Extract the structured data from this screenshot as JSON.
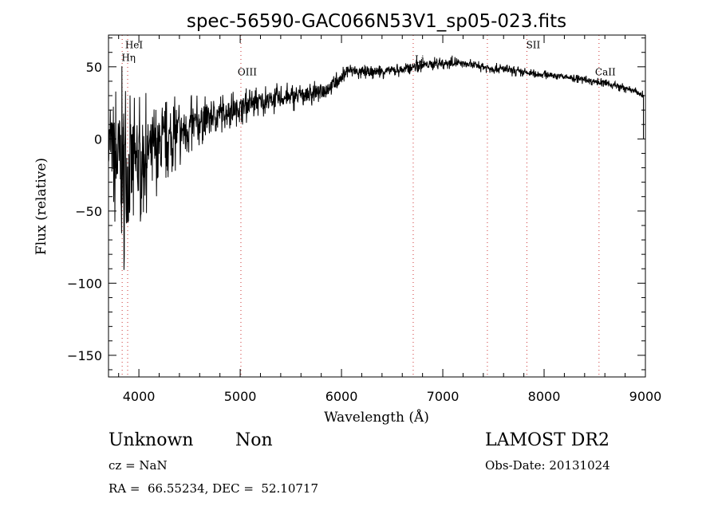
{
  "chart_data": {
    "type": "line",
    "title": "spec-56590-GAC066N53V1_sp05-023.fits",
    "xlabel": "Wavelength (Å)",
    "ylabel": "Flux (relative)",
    "xlim": [
      3700,
      9000
    ],
    "ylim": [
      -165,
      72
    ],
    "xticks": [
      4000,
      5000,
      6000,
      7000,
      8000,
      9000
    ],
    "xtick_labels": [
      "4000",
      "5000",
      "6000",
      "7000",
      "8000",
      "9000"
    ],
    "yticks": [
      -150,
      -100,
      -50,
      0,
      50
    ],
    "ytick_labels": [
      "−150",
      "−100",
      "−50",
      "0",
      "50"
    ],
    "grid": false,
    "lines": [
      {
        "label": "HeI",
        "x": 3889,
        "label_y": 63
      },
      {
        "label": "Hη",
        "x": 3835,
        "label_y": 54
      },
      {
        "label": "OIII",
        "x": 5007,
        "label_y": 44
      },
      {
        "label": "Li",
        "x": 6708,
        "label_y": 53
      },
      {
        "label": "",
        "x": 7440,
        "label_y": 45
      },
      {
        "label": "SII",
        "x": 7830,
        "label_y": 63
      },
      {
        "label": "CaII",
        "x": 8542,
        "label_y": 44
      }
    ],
    "series": [
      {
        "name": "flux",
        "x": [
          3700,
          3750,
          3800,
          3850,
          3900,
          3950,
          4000,
          4100,
          4200,
          4300,
          4400,
          4500,
          4600,
          4700,
          4800,
          4900,
          5000,
          5200,
          5400,
          5600,
          5800,
          6000,
          6050,
          6200,
          6400,
          6600,
          6700,
          6900,
          7100,
          7300,
          7500,
          7700,
          7900,
          8100,
          8300,
          8500,
          8700,
          8900,
          8980
        ],
        "y": [
          0,
          -10,
          -15,
          -20,
          -25,
          -18,
          -15,
          -8,
          -5,
          0,
          5,
          8,
          12,
          15,
          18,
          20,
          22,
          26,
          28,
          30,
          33,
          42,
          48,
          46,
          47,
          48,
          50,
          52,
          53,
          51,
          49,
          47,
          45,
          44,
          42,
          40,
          37,
          33,
          30
        ],
        "noise": [
          20,
          30,
          40,
          45,
          45,
          35,
          30,
          25,
          20,
          18,
          16,
          14,
          12,
          10,
          9,
          8,
          8,
          7,
          7,
          6,
          5,
          4,
          4,
          3.5,
          3.5,
          3,
          3,
          3,
          3,
          2.5,
          2.5,
          2.5,
          2,
          2,
          2,
          2,
          2,
          2,
          2
        ]
      }
    ]
  },
  "info": {
    "object_class": "Unknown",
    "subclass": "Non",
    "survey": "LAMOST DR2",
    "cz": "cz = NaN",
    "obs_date": "Obs-Date: 20131024",
    "coords": "RA =  66.55234, DEC =  52.10717"
  },
  "colors": {
    "foreground": "#000000",
    "line_marker": "#cc3333",
    "background": "#ffffff"
  }
}
